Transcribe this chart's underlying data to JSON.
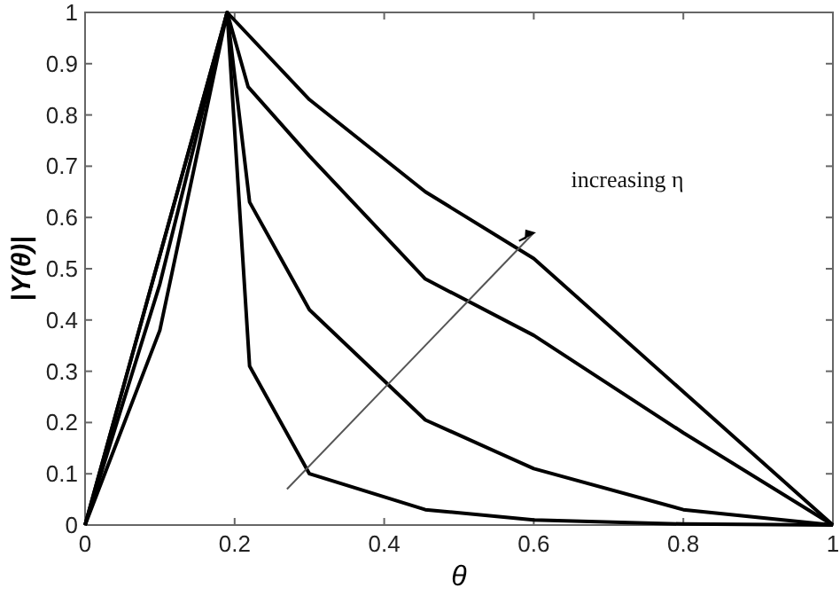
{
  "chart_data": {
    "type": "line",
    "xlabel": "θ",
    "ylabel": "|Y(θ)|",
    "xlim": [
      0,
      1
    ],
    "ylim": [
      0,
      1
    ],
    "xticks": [
      0,
      0.2,
      0.4,
      0.6,
      0.8,
      1
    ],
    "yticks": [
      0,
      0.1,
      0.2,
      0.3,
      0.4,
      0.5,
      0.6,
      0.7,
      0.8,
      0.9,
      1
    ],
    "grid": false,
    "marker": "none",
    "line_style": "solid",
    "annotations": [
      "increasing η"
    ],
    "series": [
      {
        "color": "#000000",
        "x": [
          0,
          0.19,
          0.3,
          0.455,
          0.6,
          0.8,
          1
        ],
        "values": [
          0,
          1,
          0.83,
          0.65,
          0.52,
          0.26,
          0
        ]
      },
      {
        "color": "#000000",
        "x": [
          0,
          0.19,
          0.218,
          0.3,
          0.455,
          0.6,
          0.8,
          1
        ],
        "values": [
          0,
          1,
          0.855,
          0.72,
          0.48,
          0.37,
          0.18,
          0
        ]
      },
      {
        "color": "#000000",
        "x": [
          0,
          0.1,
          0.19,
          0.22,
          0.3,
          0.455,
          0.6,
          0.8,
          1
        ],
        "values": [
          0,
          0.47,
          1,
          0.63,
          0.42,
          0.205,
          0.11,
          0.03,
          0
        ]
      },
      {
        "color": "#000000",
        "x": [
          0,
          0.1,
          0.19,
          0.22,
          0.3,
          0.455,
          0.6,
          0.8,
          1
        ],
        "values": [
          0,
          0.38,
          1,
          0.31,
          0.1,
          0.03,
          0.01,
          0.002,
          0
        ]
      }
    ]
  }
}
